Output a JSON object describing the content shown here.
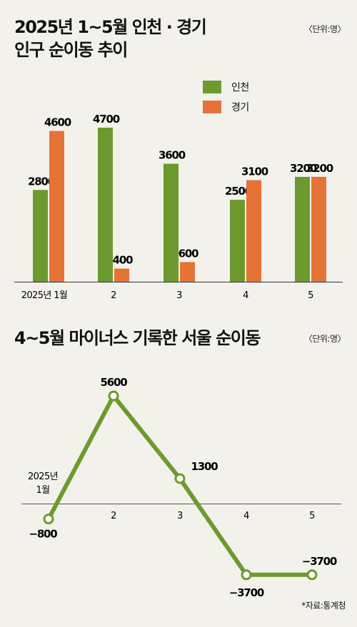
{
  "chart_data": [
    {
      "type": "bar",
      "title_lines": [
        "2025년 1~5월 인천 · 경기",
        "인구 순이동 추이"
      ],
      "unit": "〈단위:명〉",
      "categories": [
        "2025년 1월",
        "2",
        "3",
        "4",
        "5"
      ],
      "series": [
        {
          "name": "인천",
          "color": "#6d9a2e",
          "values": [
            2800,
            4700,
            3600,
            2500,
            3200
          ]
        },
        {
          "name": "경기",
          "color": "#e57336",
          "values": [
            4600,
            400,
            600,
            3100,
            3200
          ]
        }
      ],
      "legend_position": "top-right",
      "grid": false
    },
    {
      "type": "line",
      "title": "4~5월 마이너스 기록한 서울 순이동",
      "unit": "〈단위:명〉",
      "categories": [
        "2025년 1월",
        "2",
        "3",
        "4",
        "5"
      ],
      "series": [
        {
          "color": "#6d9a2e",
          "values": [
            -800,
            5600,
            1300,
            -3700,
            -3700
          ]
        }
      ],
      "grid": false
    }
  ],
  "source": "*자료:통계청"
}
